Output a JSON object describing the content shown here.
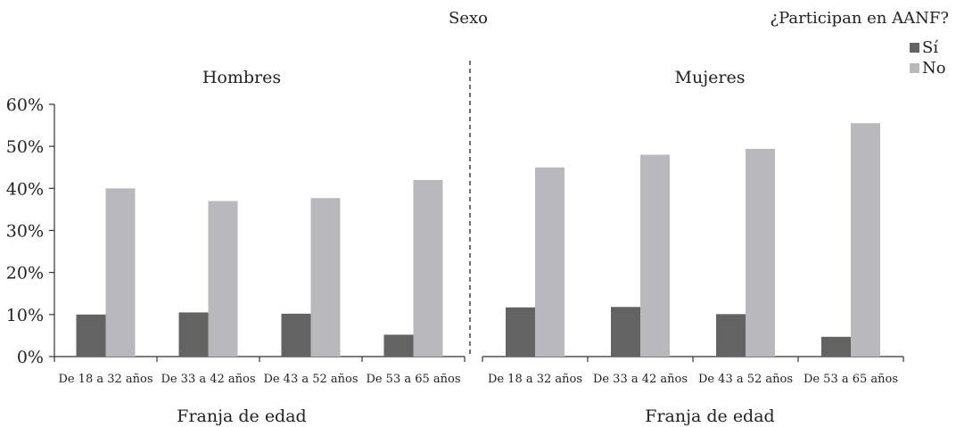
{
  "chart_data": {
    "type": "bar",
    "title": "Sexo",
    "legend": {
      "title": "¿Participan en AANF?",
      "placement": "top-right",
      "entries": [
        "Sí",
        "No"
      ]
    },
    "ylim": [
      0,
      60
    ],
    "y_ticks": [
      "0%",
      "10%",
      "20%",
      "30%",
      "40%",
      "50%",
      "60%"
    ],
    "colors": {
      "si": "#636363",
      "no": "#b9b9bd",
      "axis": "#333333"
    },
    "panels": [
      {
        "label": "Hombres",
        "xlabel": "Franja de edad",
        "categories": [
          "De 18 a 32 años",
          "De 33 a 42 años",
          "De 43 a 52 años",
          "De 53 a 65 años"
        ],
        "series": [
          {
            "name": "Sí",
            "values": [
              10,
              10.5,
              10.2,
              5.2
            ]
          },
          {
            "name": "No",
            "values": [
              40,
              37,
              37.7,
              42
            ]
          }
        ]
      },
      {
        "label": "Mujeres",
        "xlabel": "Franja de edad",
        "categories": [
          "De 18 a 32 años",
          "De 33 a 42 años",
          "De 43 a 52 años",
          "De 53 a 65 años"
        ],
        "series": [
          {
            "name": "Sí",
            "values": [
              11.7,
              11.8,
              10.1,
              4.7
            ]
          },
          {
            "name": "No",
            "values": [
              45,
              48,
              49.4,
              55.5
            ]
          }
        ]
      }
    ]
  }
}
